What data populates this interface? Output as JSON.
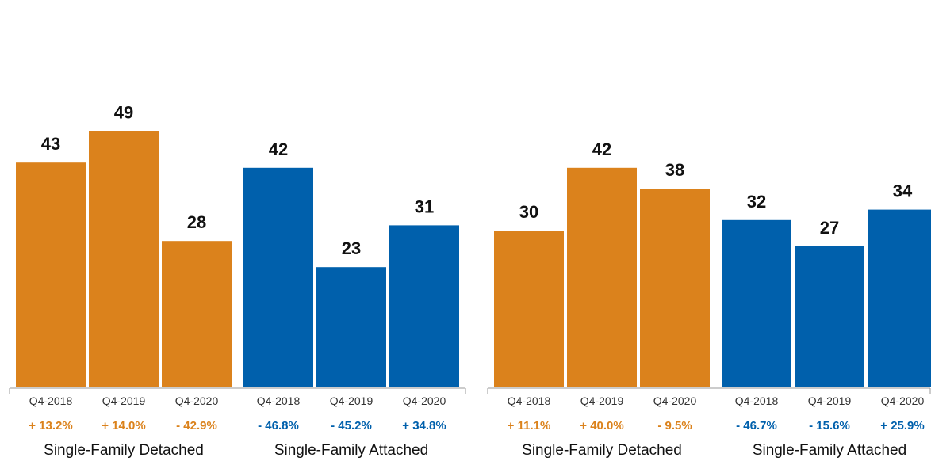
{
  "colors": {
    "detached": "#DB821C",
    "attached": "#0060AC",
    "axis": "#999999"
  },
  "chart_data": [
    {
      "type": "bar",
      "ylim": [
        0,
        60
      ],
      "groups": [
        {
          "name": "Single-Family Detached",
          "color_key": "detached",
          "categories": [
            "Q4-2018",
            "Q4-2019",
            "Q4-2020"
          ],
          "values": [
            43,
            49,
            28
          ],
          "changes": [
            "+ 13.2%",
            "+ 14.0%",
            "- 42.9%"
          ]
        },
        {
          "name": "Single-Family Attached",
          "color_key": "attached",
          "categories": [
            "Q4-2018",
            "Q4-2019",
            "Q4-2020"
          ],
          "values": [
            42,
            23,
            31
          ],
          "changes": [
            "- 46.8%",
            "- 45.2%",
            "+ 34.8%"
          ]
        }
      ]
    },
    {
      "type": "bar",
      "ylim": [
        0,
        60
      ],
      "groups": [
        {
          "name": "Single-Family Detached",
          "color_key": "detached",
          "categories": [
            "Q4-2018",
            "Q4-2019",
            "Q4-2020"
          ],
          "values": [
            30,
            42,
            38
          ],
          "changes": [
            "+ 11.1%",
            "+ 40.0%",
            "- 9.5%"
          ]
        },
        {
          "name": "Single-Family Attached",
          "color_key": "attached",
          "categories": [
            "Q4-2018",
            "Q4-2019",
            "Q4-2020"
          ],
          "values": [
            32,
            27,
            34
          ],
          "changes": [
            "- 46.7%",
            "- 15.6%",
            "+ 25.9%"
          ]
        }
      ]
    }
  ]
}
